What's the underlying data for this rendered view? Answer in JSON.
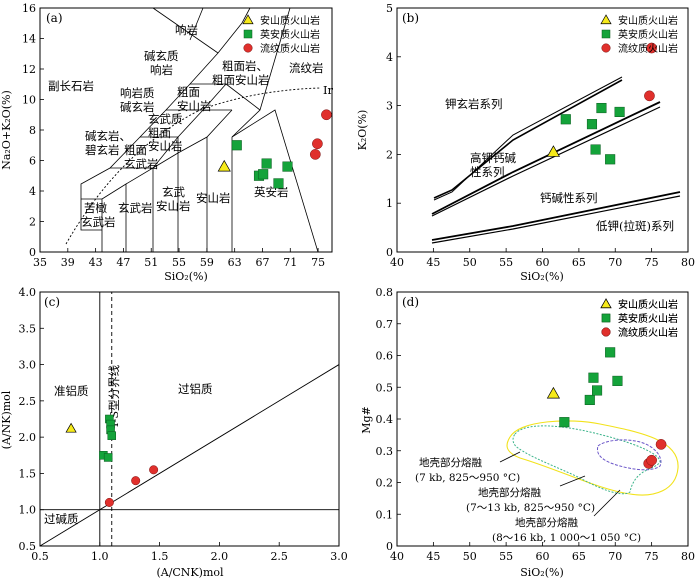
{
  "legend_labels": [
    "安山质火山岩",
    "英安质火山岩",
    "流纹质火山岩"
  ],
  "colors": {
    "andesite": "#f6ea1a",
    "dacite": "#14a33a",
    "rhyolite": "#e0302c",
    "melt_green": "#3bb38a",
    "melt_purple": "#6a55c8",
    "melt_yellow": "#f2e21b"
  },
  "chart_data": [
    {
      "type": "scatter",
      "panel_label": "(a)",
      "xlabel": "SiO₂(%)",
      "ylabel": "Na₂O+K₂O(%)",
      "xlim": [
        35,
        77
      ],
      "ylim": [
        0,
        16
      ],
      "xticks": [
        "35",
        "39",
        "43",
        "47",
        "51",
        "55",
        "59",
        "63",
        "67",
        "71",
        "75"
      ],
      "yticks": [
        "0",
        "2",
        "4",
        "6",
        "8",
        "10",
        "12",
        "14",
        "16"
      ],
      "field_labels": [
        "副长石岩",
        "响岩",
        "碱玄质",
        "响岩",
        "响岩质",
        "碱玄岩",
        "粗面岩、",
        "粗面安山岩",
        "流纹岩",
        "粗面",
        "安山岩",
        "玄武质",
        "粗面",
        "安山岩",
        "碱玄岩、",
        "碧玄岩",
        "粗面",
        "玄武岩",
        "玄武",
        "安山岩",
        "安山岩",
        "英安岩",
        "苦橄",
        "玄武岩",
        "玄武岩",
        "Ir"
      ],
      "series": [
        {
          "name": "安山质火山岩",
          "points": [
            [
              61.5,
              5.6
            ]
          ]
        },
        {
          "name": "英安质火山岩",
          "points": [
            [
              63.3,
              7.0
            ],
            [
              66.5,
              5.0
            ],
            [
              67.1,
              5.1
            ],
            [
              67.6,
              5.8
            ],
            [
              69.3,
              4.5
            ],
            [
              70.6,
              5.6
            ]
          ]
        },
        {
          "name": "流纹质火山岩",
          "points": [
            [
              74.6,
              6.4
            ],
            [
              74.9,
              7.1
            ],
            [
              76.2,
              9.0
            ]
          ]
        }
      ]
    },
    {
      "type": "scatter",
      "panel_label": "(b)",
      "xlabel": "SiO₂(%)",
      "ylabel": "K₂O(%)",
      "xlim": [
        40,
        80
      ],
      "ylim": [
        0,
        5
      ],
      "xticks": [
        "40",
        "45",
        "50",
        "55",
        "60",
        "65",
        "70",
        "75",
        "80"
      ],
      "yticks": [
        "0",
        "1",
        "2",
        "3",
        "4",
        "5"
      ],
      "series_labels": [
        "钾玄岩系列",
        "高钾钙碱",
        "性系列",
        "钙碱性系列",
        "低钾(拉斑)系列"
      ],
      "series": [
        {
          "name": "安山质火山岩",
          "points": [
            [
              61.5,
              2.05
            ]
          ]
        },
        {
          "name": "英安质火山岩",
          "points": [
            [
              63.2,
              2.72
            ],
            [
              66.8,
              2.62
            ],
            [
              67.3,
              2.1
            ],
            [
              68.1,
              2.95
            ],
            [
              69.3,
              1.9
            ],
            [
              70.6,
              2.87
            ]
          ]
        },
        {
          "name": "流纹质火山岩",
          "points": [
            [
              74.7,
              3.2
            ],
            [
              75.0,
              4.18
            ]
          ]
        }
      ]
    },
    {
      "type": "scatter",
      "panel_label": "(c)",
      "xlabel": "(A/CNK)mol",
      "ylabel": "(A/NK)mol",
      "xlim": [
        0.5,
        3.0
      ],
      "ylim": [
        0.5,
        4.0
      ],
      "xticks": [
        "0.5",
        "1.0",
        "1.5",
        "2.0",
        "2.5",
        "3.0"
      ],
      "yticks": [
        "0.5",
        "1.0",
        "1.5",
        "2.0",
        "2.5",
        "3.0",
        "3.5",
        "4.0"
      ],
      "field_labels": [
        "准铝质",
        "过铝质",
        "过碱质"
      ],
      "line_label": "I-S型分界线",
      "series": [
        {
          "name": "安山质火山岩",
          "points": [
            [
              0.76,
              2.12
            ]
          ]
        },
        {
          "name": "英安质火山岩",
          "points": [
            [
              1.03,
              1.75
            ],
            [
              1.07,
              1.72
            ],
            [
              1.08,
              2.25
            ],
            [
              1.09,
              2.18
            ],
            [
              1.09,
              2.1
            ],
            [
              1.1,
              2.02
            ]
          ]
        },
        {
          "name": "流纹质火山岩",
          "points": [
            [
              1.08,
              1.1
            ],
            [
              1.3,
              1.4
            ],
            [
              1.45,
              1.55
            ]
          ]
        }
      ]
    },
    {
      "type": "scatter",
      "panel_label": "(d)",
      "xlabel": "SiO₂(%)",
      "ylabel": "Mg#",
      "xlim": [
        40,
        80
      ],
      "ylim": [
        0,
        0.8
      ],
      "xticks": [
        "40",
        "45",
        "50",
        "55",
        "60",
        "65",
        "70",
        "75",
        "80"
      ],
      "yticks": [
        "0",
        "0.1",
        "0.2",
        "0.3",
        "0.4",
        "0.5",
        "0.6",
        "0.7",
        "0.8"
      ],
      "annotations": [
        "地壳部分熔融",
        "(7 kb, 825～950 °C)",
        "地壳部分熔融",
        "(7～13 kb, 825～950 °C)",
        "地壳部分熔融",
        "(8～16 kb, 1 000～1 050 °C)"
      ],
      "series": [
        {
          "name": "安山质火山岩",
          "points": [
            [
              61.5,
              0.48
            ]
          ]
        },
        {
          "name": "英安质火山岩",
          "points": [
            [
              63.0,
              0.39
            ],
            [
              66.5,
              0.46
            ],
            [
              67.0,
              0.53
            ],
            [
              67.5,
              0.49
            ],
            [
              69.3,
              0.61
            ],
            [
              70.3,
              0.52
            ]
          ]
        },
        {
          "name": "流纹质火山岩",
          "points": [
            [
              74.6,
              0.26
            ],
            [
              75.0,
              0.27
            ],
            [
              76.3,
              0.32
            ]
          ]
        }
      ]
    }
  ]
}
